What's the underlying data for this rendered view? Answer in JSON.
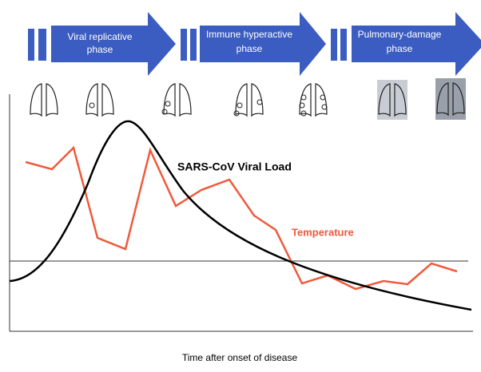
{
  "phases": [
    {
      "line1": "Viral replicative",
      "line2": "phase"
    },
    {
      "line1": "Immune hyperactive",
      "line2": "phase"
    },
    {
      "line1": "Pulmonary-damage",
      "line2": "phase"
    }
  ],
  "curves": {
    "viral_load": "SARS-CoV Viral Load",
    "temperature": "Temperature"
  },
  "x_axis_label": "Time  after onset of disease"
}
